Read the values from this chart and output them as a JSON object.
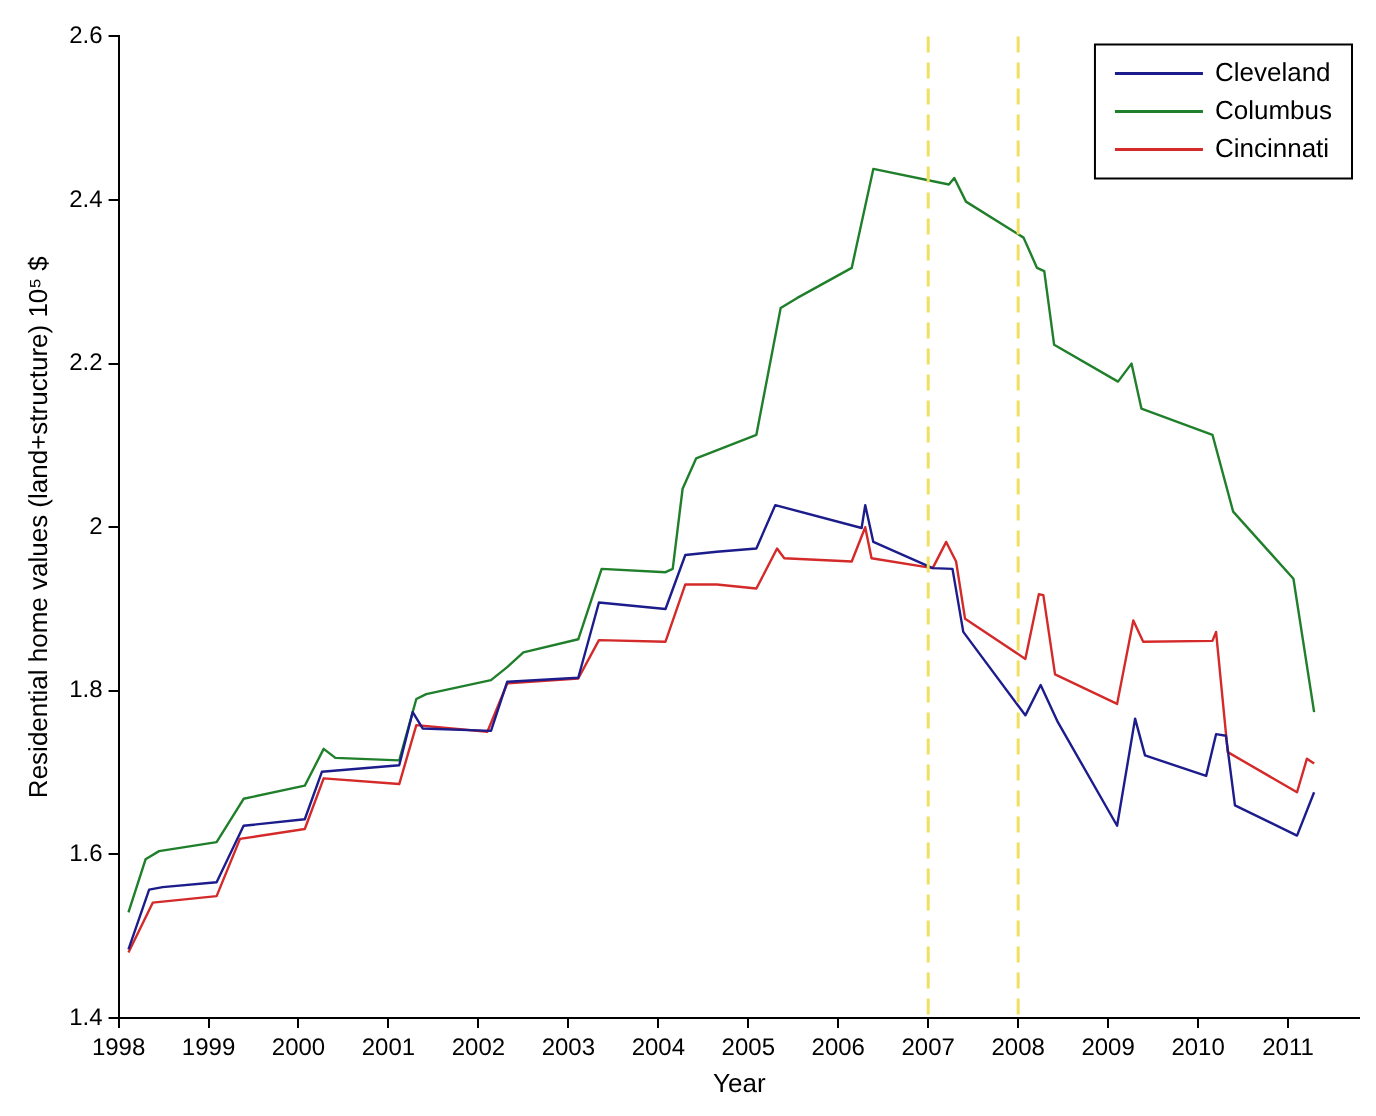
{
  "chart_data": {
    "type": "line",
    "xlabel": "Year",
    "ylabel": "Residential home values (land+structure) 10⁵ $",
    "xlim": [
      1998,
      2011.8
    ],
    "xticks": [
      1998,
      1999,
      2000,
      2001,
      2002,
      2003,
      2004,
      2005,
      2006,
      2007,
      2008,
      2009,
      2010,
      2011
    ],
    "ylim": [
      1.4,
      2.6
    ],
    "yticks": [
      1.4,
      1.6,
      1.8,
      2,
      2.2,
      2.4,
      2.6
    ],
    "grid": false,
    "legend": "top right",
    "marker": "none",
    "line_style": "solid",
    "ref_lines": [
      {
        "axis": "x",
        "value": 2007,
        "color": "#f0e060",
        "line_style": "dashed"
      },
      {
        "axis": "x",
        "value": 2008,
        "color": "#f0e060",
        "line_style": "dashed"
      }
    ],
    "series": [
      {
        "name": "Cleveland",
        "color": "#1c1c8c",
        "x": [
          1998.11,
          1998.34,
          1998.49,
          1999.09,
          1999.39,
          2000.07,
          2000.26,
          2001.12,
          2001.27,
          2001.38,
          2002.14,
          2002.32,
          2003.11,
          2003.34,
          2004.08,
          2004.3,
          2004.65,
          2005.09,
          2005.3,
          2006.26,
          2006.3,
          2006.39,
          2007.05,
          2007.27,
          2007.39,
          2008.08,
          2008.25,
          2008.44,
          2009.1,
          2009.3,
          2009.41,
          2010.09,
          2010.2,
          2010.31,
          2010.41,
          2011.1,
          2011.29
        ],
        "values": [
          1.484,
          1.557,
          1.56,
          1.566,
          1.635,
          1.643,
          1.701,
          1.709,
          1.774,
          1.754,
          1.751,
          1.811,
          1.816,
          1.908,
          1.9,
          1.966,
          1.97,
          1.974,
          2.027,
          1.999,
          2.027,
          1.982,
          1.95,
          1.949,
          1.872,
          1.77,
          1.807,
          1.762,
          1.635,
          1.766,
          1.721,
          1.696,
          1.747,
          1.745,
          1.66,
          1.623,
          1.676
        ]
      },
      {
        "name": "Columbus",
        "color": "#1f7f2a",
        "x": [
          1998.11,
          1998.3,
          1998.45,
          1999.09,
          1999.39,
          2000.07,
          2000.28,
          2000.41,
          2001.12,
          2001.31,
          2001.42,
          2002.14,
          2002.32,
          2002.5,
          2003.11,
          2003.37,
          2004.08,
          2004.16,
          2004.27,
          2004.42,
          2005.09,
          2005.36,
          2005.54,
          2006.15,
          2006.39,
          2007.23,
          2007.29,
          2007.42,
          2008.06,
          2008.21,
          2008.29,
          2008.4,
          2009.11,
          2009.26,
          2009.37,
          2010.16,
          2010.39,
          2011.06,
          2011.29
        ],
        "values": [
          1.529,
          1.594,
          1.604,
          1.615,
          1.668,
          1.684,
          1.729,
          1.718,
          1.715,
          1.79,
          1.796,
          1.813,
          1.829,
          1.847,
          1.863,
          1.949,
          1.945,
          1.949,
          2.047,
          2.084,
          2.113,
          2.268,
          2.28,
          2.317,
          2.438,
          2.419,
          2.427,
          2.398,
          2.354,
          2.317,
          2.313,
          2.223,
          2.178,
          2.2,
          2.145,
          2.113,
          2.019,
          1.937,
          1.774
        ]
      },
      {
        "name": "Cincinnati",
        "color": "#d42a2a",
        "x": [
          1998.11,
          1998.38,
          1999.09,
          1999.35,
          2000.07,
          2000.28,
          2001.12,
          2001.31,
          2002.1,
          2002.32,
          2003.11,
          2003.34,
          2004.08,
          2004.3,
          2004.65,
          2005.09,
          2005.32,
          2005.4,
          2006.15,
          2006.3,
          2006.37,
          2007.05,
          2007.2,
          2007.31,
          2007.41,
          2008.08,
          2008.23,
          2008.28,
          2008.41,
          2009.1,
          2009.28,
          2009.39,
          2010.16,
          2010.2,
          2010.33,
          2011.1,
          2011.21,
          2011.29
        ],
        "values": [
          1.48,
          1.541,
          1.549,
          1.619,
          1.631,
          1.693,
          1.686,
          1.758,
          1.75,
          1.809,
          1.815,
          1.862,
          1.86,
          1.93,
          1.93,
          1.925,
          1.974,
          1.962,
          1.958,
          2.0,
          1.962,
          1.95,
          1.982,
          1.958,
          1.888,
          1.839,
          1.918,
          1.917,
          1.82,
          1.784,
          1.886,
          1.86,
          1.861,
          1.872,
          1.725,
          1.676,
          1.717,
          1.711
        ]
      }
    ]
  }
}
